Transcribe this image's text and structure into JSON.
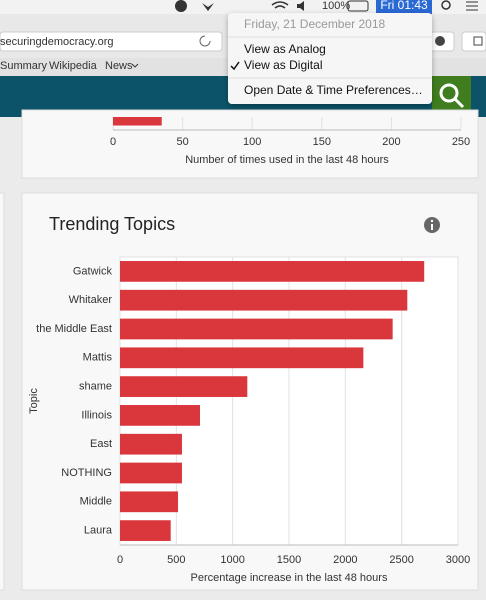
{
  "menubar": {
    "battery": "100%",
    "clock": "Fri 01:43"
  },
  "clock_menu": {
    "date": "Friday, 21 December 2018",
    "items": [
      "View as Analog",
      "View as Digital",
      "Open Date & Time Preferences…"
    ]
  },
  "browser": {
    "url": "securingdemocracy.org",
    "bookmarks": [
      "Summary",
      "Wikipedia",
      "News"
    ]
  },
  "chart_data": [
    {
      "type": "bar",
      "orientation": "horizontal",
      "values": [
        35
      ],
      "color": "#d9373c",
      "xlim": [
        0,
        250
      ],
      "xticks": [
        0,
        50,
        100,
        150,
        200,
        250
      ],
      "grid": true,
      "xlabel": "Number of times used in the last 48 hours"
    },
    {
      "type": "bar",
      "orientation": "horizontal",
      "title": "Trending Topics",
      "categories": [
        "Gatwick",
        "Whitaker",
        "the Middle East",
        "Mattis",
        "shame",
        "Illinois",
        "East",
        "NOTHING",
        "Middle",
        "Laura"
      ],
      "values": [
        2700,
        2550,
        2420,
        2160,
        1130,
        710,
        550,
        550,
        515,
        450
      ],
      "color": "#d9373c",
      "xlim": [
        0,
        3000
      ],
      "xticks": [
        0,
        500,
        1000,
        1500,
        2000,
        2500,
        3000
      ],
      "grid": true,
      "xlabel": "Percentage increase in the last 48 hours",
      "ylabel": "Topic"
    }
  ]
}
